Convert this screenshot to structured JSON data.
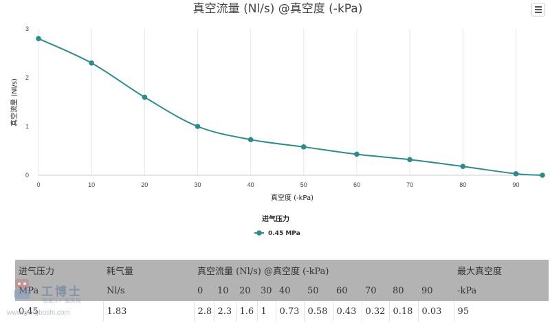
{
  "chart_data": {
    "type": "line",
    "title": "真空流量 (Nl/s) @真空度 (-kPa)",
    "xlabel": "真空度 (-kPa)",
    "ylabel": "真空流量 (Nl/s)",
    "x_ticks": [
      "0",
      "10",
      "20",
      "30",
      "40",
      "50",
      "60",
      "70",
      "80",
      "90"
    ],
    "y_ticks": [
      "0",
      "1",
      "2",
      "3"
    ],
    "xlim": [
      0,
      95
    ],
    "ylim": [
      0,
      3
    ],
    "grid": "vertical",
    "legend_title": "进气压力",
    "legend_position": "bottom-center",
    "series": [
      {
        "name": "0.45 MPa",
        "color": "#2e8b8b",
        "x": [
          0,
          10,
          20,
          30,
          40,
          50,
          60,
          70,
          80,
          90,
          95
        ],
        "y": [
          2.8,
          2.3,
          1.6,
          1,
          0.73,
          0.58,
          0.43,
          0.32,
          0.18,
          0.03,
          0
        ]
      }
    ]
  },
  "menu": {
    "icon": "hamburger-menu-icon"
  },
  "table": {
    "header_row1": {
      "pressure": "进气压力",
      "consumption": "耗气量",
      "flow": "真空流量 (Nl/s) @真空度 (-kPa)",
      "max_vacuum": "最大真空度"
    },
    "header_row2": {
      "pressure_unit": "MPa",
      "consumption_unit": "Nl/s",
      "vacuum_levels": [
        "0",
        "10",
        "20",
        "30",
        "40",
        "50",
        "60",
        "70",
        "80",
        "90"
      ],
      "max_unit": "-kPa"
    },
    "values": {
      "pressure": "0.45",
      "consumption": "1.83",
      "flows": [
        "2.8",
        "2.3",
        "1.6",
        "1",
        "0.73",
        "0.58",
        "0.43",
        "0.32",
        "0.18",
        "0.03"
      ],
      "max": "95"
    }
  },
  "watermark": {
    "name": "工博士",
    "tagline": "智能工厂服务商",
    "url": "www.gongboshi.com"
  }
}
